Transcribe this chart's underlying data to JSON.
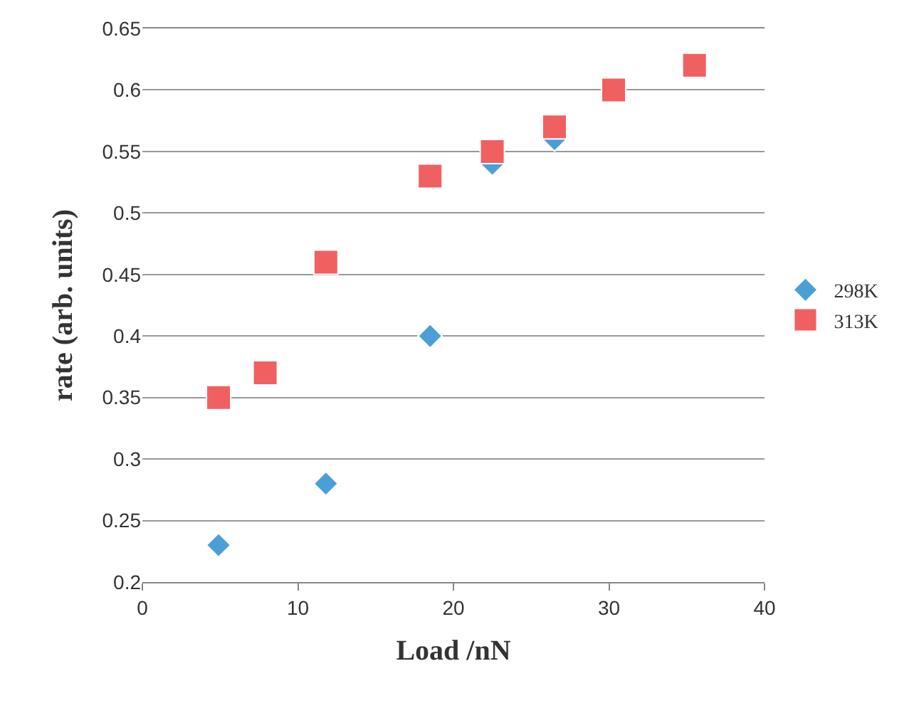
{
  "chart_data": {
    "type": "scatter",
    "xlabel": "Load /nN",
    "ylabel": "rate (arb. units)",
    "xlim": [
      0,
      40
    ],
    "xticks": [
      0,
      10,
      20,
      30,
      40
    ],
    "ylim": [
      0.2,
      0.65
    ],
    "yticks": [
      0.2,
      0.25,
      0.3,
      0.35,
      0.4,
      0.45,
      0.5,
      0.55,
      0.6,
      0.65
    ],
    "grid": "y",
    "legend": "right",
    "series": [
      {
        "name": "298K",
        "color": "#4a9fd6",
        "marker": "diamond",
        "x": [
          4.9,
          11.8,
          18.5,
          22.5,
          26.5
        ],
        "values": [
          0.23,
          0.28,
          0.4,
          0.54,
          0.56
        ]
      },
      {
        "name": "313K",
        "color": "#f06060",
        "marker": "square",
        "x": [
          4.9,
          7.9,
          11.8,
          18.5,
          22.5,
          26.5,
          30.3,
          35.5
        ],
        "values": [
          0.35,
          0.37,
          0.46,
          0.53,
          0.55,
          0.57,
          0.6,
          0.62
        ]
      }
    ]
  }
}
